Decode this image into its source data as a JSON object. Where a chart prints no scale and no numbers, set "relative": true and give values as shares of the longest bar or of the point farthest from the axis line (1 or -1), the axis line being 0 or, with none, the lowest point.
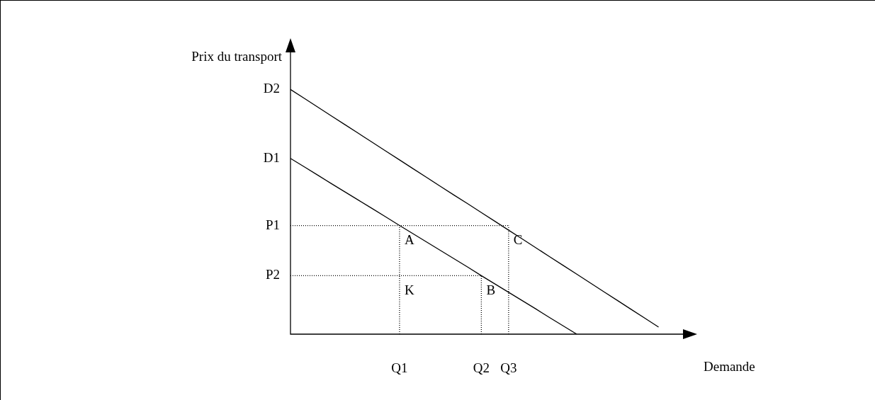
{
  "chart_data": {
    "type": "line",
    "relative": true,
    "xlabel": "Demande",
    "ylabel": "Prix du transport",
    "marker": "none",
    "categories": [
      null,
      null,
      null,
      null,
      null,
      null,
      null,
      null,
      "Q1",
      null,
      null,
      null,
      null,
      null,
      "Q2",
      null,
      "Q3",
      null,
      null,
      null,
      null,
      null,
      null,
      null,
      null,
      null,
      null,
      null,
      null,
      null
    ],
    "series": [
      {
        "name": "D1",
        "color": "#000000",
        "line_style": "solid",
        "values": [
          0.718,
          0.684,
          0.65,
          0.615,
          0.581,
          0.547,
          0.513,
          0.479,
          0.444,
          0.41,
          0.376,
          0.342,
          0.308,
          0.274,
          0.239,
          0.205,
          0.171,
          0.137,
          0.103,
          0.068,
          0.034,
          0,
          null,
          null,
          null,
          null,
          null,
          null,
          null,
          null
        ]
      },
      {
        "name": "D2",
        "color": "#000000",
        "line_style": "solid",
        "values": [
          1,
          0.964,
          0.928,
          0.892,
          0.856,
          0.82,
          0.784,
          0.748,
          0.712,
          0.676,
          0.64,
          0.604,
          0.568,
          0.533,
          0.497,
          0.461,
          0.425,
          0.389,
          0.353,
          0.317,
          0.281,
          0.245,
          0.209,
          0.173,
          0.137,
          0.101,
          0.065,
          0.029,
          null,
          null
        ]
      },
      {
        "name": "P1",
        "color": "#000000",
        "line_style": "dotted",
        "values": [
          0.444,
          0.444,
          0.444,
          0.444,
          0.444,
          0.444,
          0.444,
          0.444,
          0.444,
          0.444,
          0.444,
          0.444,
          0.444,
          0.444,
          0.444,
          0.444,
          0.444,
          null,
          null,
          null,
          null,
          null,
          null,
          null,
          null,
          null,
          null,
          null,
          null,
          null
        ]
      },
      {
        "name": "P2",
        "color": "#000000",
        "line_style": "dotted",
        "values": [
          0.239,
          0.239,
          0.239,
          0.239,
          0.239,
          0.239,
          0.239,
          0.239,
          0.239,
          0.239,
          0.239,
          0.239,
          0.239,
          0.239,
          0.239,
          null,
          null,
          null,
          null,
          null,
          null,
          null,
          null,
          null,
          null,
          null,
          null,
          null,
          null,
          null
        ]
      },
      {
        "color": "#000000",
        "line_style": "dotted",
        "x": [
          "Q1",
          "Q1"
        ],
        "values": [
          0,
          0.444
        ]
      },
      {
        "color": "#000000",
        "line_style": "dotted",
        "x": [
          "Q2",
          "Q2"
        ],
        "values": [
          0,
          0.239
        ]
      },
      {
        "color": "#000000",
        "line_style": "dotted",
        "x": [
          "Q3",
          "Q3"
        ],
        "values": [
          0,
          0.444
        ]
      }
    ],
    "annotations": [
      {
        "text": "A",
        "x": "Q1",
        "y": 0.444
      },
      {
        "text": "C",
        "x": "Q3",
        "y": 0.444
      },
      {
        "text": "K",
        "x": "Q1",
        "y": 0.239
      },
      {
        "text": "B",
        "x": "Q2",
        "y": 0.239
      }
    ]
  }
}
